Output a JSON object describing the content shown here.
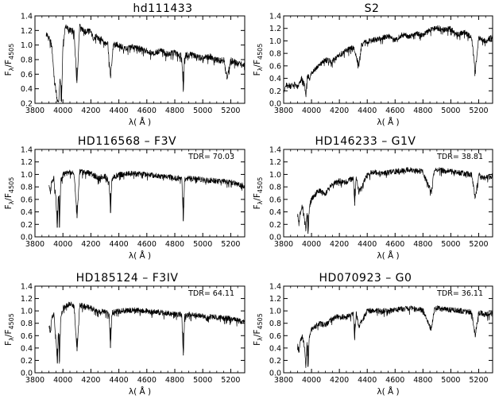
{
  "figure": {
    "xlabel": "λ( Å )",
    "ylabel_main": "F",
    "ylabel_sub_lambda": "λ",
    "ylabel_slash": "/F",
    "ylabel_sub_norm": "4505"
  },
  "chart_data": [
    {
      "type": "line",
      "title": "hd111433",
      "tdr": "",
      "xlim": [
        3800,
        5300
      ],
      "ylim": [
        0.2,
        1.4
      ],
      "xticks": [
        "3800",
        "4000",
        "4200",
        "4400",
        "4600",
        "4800",
        "5000",
        "5200"
      ],
      "yticks": [
        "0.2",
        "0.4",
        "0.6",
        "0.8",
        "1.0",
        "1.2",
        "1.4"
      ],
      "series": [
        {
          "x": [
            3880,
            3900,
            3920,
            3940,
            3960,
            3970,
            3980,
            3990,
            4000,
            4020,
            4040,
            4060,
            4080,
            4100,
            4120,
            4140,
            4160,
            4180,
            4200,
            4220,
            4240,
            4260,
            4280,
            4300,
            4320,
            4340,
            4360,
            4380,
            4400,
            4450,
            4500,
            4550,
            4600,
            4650,
            4700,
            4750,
            4800,
            4850,
            4861,
            4870,
            4900,
            4950,
            5000,
            5050,
            5100,
            5150,
            5175,
            5200,
            5250,
            5300
          ],
          "y": [
            1.15,
            1.1,
            1.0,
            0.5,
            0.25,
            0.22,
            0.6,
            0.22,
            1.0,
            1.28,
            1.2,
            1.22,
            1.18,
            0.48,
            1.3,
            1.22,
            1.18,
            1.2,
            1.18,
            1.1,
            1.12,
            1.08,
            1.1,
            1.02,
            1.05,
            0.55,
            1.0,
            1.02,
            1.0,
            0.95,
            0.98,
            0.95,
            0.92,
            0.9,
            0.92,
            0.88,
            0.9,
            0.85,
            0.38,
            0.85,
            0.88,
            0.85,
            0.82,
            0.85,
            0.8,
            0.8,
            0.55,
            0.8,
            0.75,
            0.72
          ]
        }
      ]
    },
    {
      "type": "line",
      "title": "S2",
      "tdr": "",
      "xlim": [
        3800,
        5300
      ],
      "ylim": [
        0.0,
        1.4
      ],
      "xticks": [
        "3800",
        "4000",
        "4200",
        "4400",
        "4600",
        "4800",
        "5000",
        "5200"
      ],
      "yticks": [
        "0.0",
        "0.2",
        "0.4",
        "0.6",
        "0.8",
        "1.0",
        "1.2",
        "1.4"
      ],
      "series": [
        {
          "x": [
            3800,
            3820,
            3850,
            3880,
            3900,
            3930,
            3950,
            3960,
            3970,
            3990,
            4000,
            4050,
            4100,
            4150,
            4200,
            4250,
            4300,
            4340,
            4360,
            4400,
            4450,
            4500,
            4550,
            4600,
            4650,
            4700,
            4750,
            4800,
            4850,
            4900,
            4950,
            5000,
            5050,
            5100,
            5150,
            5175,
            5200,
            5250,
            5300
          ],
          "y": [
            0.2,
            0.3,
            0.28,
            0.32,
            0.25,
            0.4,
            0.3,
            0.15,
            0.45,
            0.4,
            0.5,
            0.6,
            0.7,
            0.68,
            0.78,
            0.85,
            0.9,
            0.62,
            0.95,
            1.0,
            1.02,
            1.05,
            1.08,
            1.02,
            1.1,
            1.08,
            1.12,
            1.1,
            1.18,
            1.22,
            1.18,
            1.2,
            1.1,
            1.15,
            1.05,
            0.5,
            1.05,
            1.0,
            1.08
          ]
        }
      ]
    },
    {
      "type": "line",
      "title": "HD116568 – F3V",
      "tdr": "TDR= 70.03",
      "xlim": [
        3800,
        5300
      ],
      "ylim": [
        0.0,
        1.4
      ],
      "xticks": [
        "3800",
        "4000",
        "4200",
        "4400",
        "4600",
        "4800",
        "5000",
        "5200"
      ],
      "yticks": [
        "0.0",
        "0.2",
        "0.4",
        "0.6",
        "0.8",
        "1.0",
        "1.2",
        "1.4"
      ],
      "series": [
        {
          "x": [
            3900,
            3910,
            3920,
            3935,
            3950,
            3960,
            3968,
            3975,
            3985,
            4000,
            4050,
            4080,
            4101,
            4120,
            4200,
            4250,
            4300,
            4330,
            4340,
            4350,
            4400,
            4500,
            4600,
            4700,
            4800,
            4850,
            4861,
            4870,
            4900,
            5000,
            5100,
            5200,
            5250,
            5300
          ],
          "y": [
            0.85,
            0.7,
            0.9,
            0.95,
            0.6,
            0.15,
            0.75,
            0.15,
            0.9,
            1.0,
            1.05,
            1.02,
            0.3,
            1.05,
            1.02,
            0.95,
            0.98,
            0.9,
            0.4,
            0.95,
            1.0,
            1.02,
            1.0,
            0.98,
            0.95,
            0.95,
            0.25,
            0.92,
            0.95,
            0.92,
            0.9,
            0.88,
            0.85,
            0.82
          ]
        }
      ]
    },
    {
      "type": "line",
      "title": "HD146233 – G1V",
      "tdr": "TDR= 38.81",
      "xlim": [
        3800,
        5300
      ],
      "ylim": [
        0.0,
        1.4
      ],
      "xticks": [
        "3800",
        "4000",
        "4200",
        "4400",
        "4600",
        "4800",
        "5000",
        "5200"
      ],
      "yticks": [
        "0.0",
        "0.2",
        "0.4",
        "0.6",
        "0.8",
        "1.0",
        "1.2",
        "1.4"
      ],
      "series": [
        {
          "x": [
            3900,
            3910,
            3920,
            3935,
            3950,
            3960,
            3968,
            3975,
            3985,
            4000,
            4050,
            4100,
            4150,
            4200,
            4250,
            4300,
            4310,
            4320,
            4340,
            4400,
            4450,
            4500,
            4600,
            4700,
            4800,
            4861,
            4880,
            4900,
            5000,
            5100,
            5150,
            5175,
            5200,
            5250,
            5300
          ],
          "y": [
            0.35,
            0.25,
            0.4,
            0.5,
            0.3,
            0.1,
            0.4,
            0.05,
            0.5,
            0.6,
            0.75,
            0.7,
            0.85,
            0.9,
            0.88,
            0.95,
            0.5,
            0.98,
            0.72,
            1.0,
            1.05,
            1.02,
            1.05,
            1.08,
            1.05,
            0.72,
            1.05,
            1.08,
            1.05,
            1.02,
            1.0,
            0.62,
            1.0,
            0.95,
            0.98
          ]
        }
      ]
    },
    {
      "type": "line",
      "title": "HD185124 – F3IV",
      "tdr": "TDR= 64.11",
      "xlim": [
        3800,
        5300
      ],
      "ylim": [
        0.0,
        1.4
      ],
      "xticks": [
        "3800",
        "4000",
        "4200",
        "4400",
        "4600",
        "4800",
        "5000",
        "5200"
      ],
      "yticks": [
        "0.0",
        "0.2",
        "0.4",
        "0.6",
        "0.8",
        "1.0",
        "1.2",
        "1.4"
      ],
      "series": [
        {
          "x": [
            3900,
            3910,
            3920,
            3935,
            3950,
            3960,
            3968,
            3975,
            3985,
            4000,
            4050,
            4080,
            4101,
            4120,
            4200,
            4250,
            4300,
            4330,
            4340,
            4350,
            4400,
            4500,
            4600,
            4700,
            4800,
            4850,
            4861,
            4870,
            4900,
            5000,
            5100,
            5200,
            5250,
            5300
          ],
          "y": [
            0.8,
            0.65,
            0.9,
            0.95,
            0.55,
            0.15,
            0.7,
            0.18,
            0.9,
            1.05,
            1.12,
            1.08,
            0.35,
            1.1,
            1.05,
            1.0,
            1.0,
            0.95,
            0.4,
            0.98,
            1.0,
            1.02,
            1.0,
            0.98,
            0.95,
            0.95,
            0.28,
            0.92,
            0.95,
            0.92,
            0.9,
            0.88,
            0.85,
            0.82
          ]
        }
      ]
    },
    {
      "type": "line",
      "title": "HD070923 – G0",
      "tdr": "TDR= 36.11",
      "xlim": [
        3800,
        5300
      ],
      "ylim": [
        0.0,
        1.4
      ],
      "xticks": [
        "3800",
        "4000",
        "4200",
        "4400",
        "4600",
        "4800",
        "5000",
        "5200"
      ],
      "yticks": [
        "0.0",
        "0.2",
        "0.4",
        "0.6",
        "0.8",
        "1.0",
        "1.2",
        "1.4"
      ],
      "series": [
        {
          "x": [
            3900,
            3910,
            3920,
            3935,
            3950,
            3960,
            3968,
            3975,
            3985,
            4000,
            4050,
            4100,
            4150,
            4200,
            4250,
            4300,
            4310,
            4320,
            4340,
            4400,
            4450,
            4500,
            4600,
            4700,
            4800,
            4861,
            4880,
            4900,
            5000,
            5100,
            5150,
            5175,
            5200,
            5250,
            5300
          ],
          "y": [
            0.45,
            0.35,
            0.5,
            0.6,
            0.4,
            0.15,
            0.5,
            0.1,
            0.6,
            0.7,
            0.8,
            0.78,
            0.88,
            0.92,
            0.9,
            0.95,
            0.55,
            0.98,
            0.75,
            1.0,
            1.02,
            1.0,
            1.02,
            1.05,
            1.02,
            0.7,
            1.02,
            1.05,
            1.02,
            1.0,
            0.98,
            0.6,
            0.98,
            0.95,
            0.95
          ]
        }
      ]
    }
  ]
}
